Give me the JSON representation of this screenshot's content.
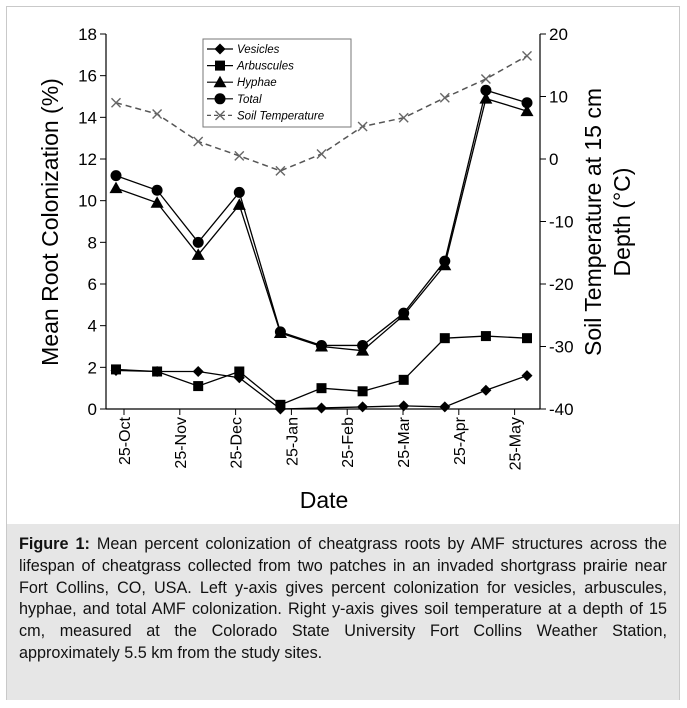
{
  "caption": {
    "label": "Figure 1:",
    "text": " Mean percent colonization of cheatgrass roots by AMF structures across the lifespan of cheatgrass collected from two patches in an invaded shortgrass prairie near Fort Collins, CO, USA. Left y-axis gives percent colonization for vesicles, arbuscules, hyphae, and total AMF colonization. Right y-axis gives soil temperature at a depth of 15 cm, measured at the Colorado State University Fort Collins Weather Station, approximately 5.5 km from the study sites."
  },
  "chart_data": {
    "type": "line",
    "xlabel": "Date",
    "ylabel": "Mean Root Colonization (%)",
    "y2label": "Soil Temperature at 15 cm Depth (°C)",
    "ylim": [
      0,
      18
    ],
    "y2lim": [
      -40,
      20
    ],
    "yticks": [
      0,
      2,
      4,
      6,
      8,
      10,
      12,
      14,
      16,
      18
    ],
    "y2ticks": [
      -40,
      -30,
      -20,
      -10,
      0,
      10,
      20
    ],
    "xticks": [
      "25-Oct",
      "25-Nov",
      "25-Dec",
      "25-Jan",
      "25-Feb",
      "25-Mar",
      "25-Apr",
      "25-May"
    ],
    "x": [
      "25-Oct",
      "19-Nov",
      "10-Dec",
      "4-Jan",
      "25-Jan",
      "16-Feb",
      "7-Mar",
      "28-Mar",
      "18-Apr",
      "9-May",
      "30-May"
    ],
    "legend_position": "top-left",
    "grid": false,
    "series": [
      {
        "name": "Vesicles",
        "axis": "left",
        "marker": "diamond",
        "line": "solid",
        "values": [
          1.85,
          1.8,
          1.8,
          1.5,
          0.0,
          0.05,
          0.1,
          0.15,
          0.1,
          0.9,
          1.6
        ]
      },
      {
        "name": "Arbuscules",
        "axis": "left",
        "marker": "square",
        "line": "solid",
        "values": [
          1.9,
          1.8,
          1.1,
          1.8,
          0.2,
          1.0,
          0.85,
          1.4,
          3.4,
          3.5,
          3.4
        ]
      },
      {
        "name": "Hyphae",
        "axis": "left",
        "marker": "triangle",
        "line": "solid",
        "values": [
          10.6,
          9.9,
          7.4,
          9.8,
          3.65,
          3.0,
          2.8,
          4.5,
          6.9,
          14.9,
          14.3
        ]
      },
      {
        "name": "Total",
        "axis": "left",
        "marker": "circle",
        "line": "solid",
        "values": [
          11.2,
          10.5,
          8.0,
          10.4,
          3.7,
          3.05,
          3.05,
          4.6,
          7.1,
          15.3,
          14.7
        ]
      },
      {
        "name": "Soil Temperature",
        "axis": "right",
        "marker": "x",
        "line": "dashed",
        "values": [
          9.0,
          7.2,
          2.8,
          0.5,
          -1.9,
          0.8,
          5.2,
          6.6,
          9.8,
          12.8,
          16.5
        ]
      }
    ]
  }
}
